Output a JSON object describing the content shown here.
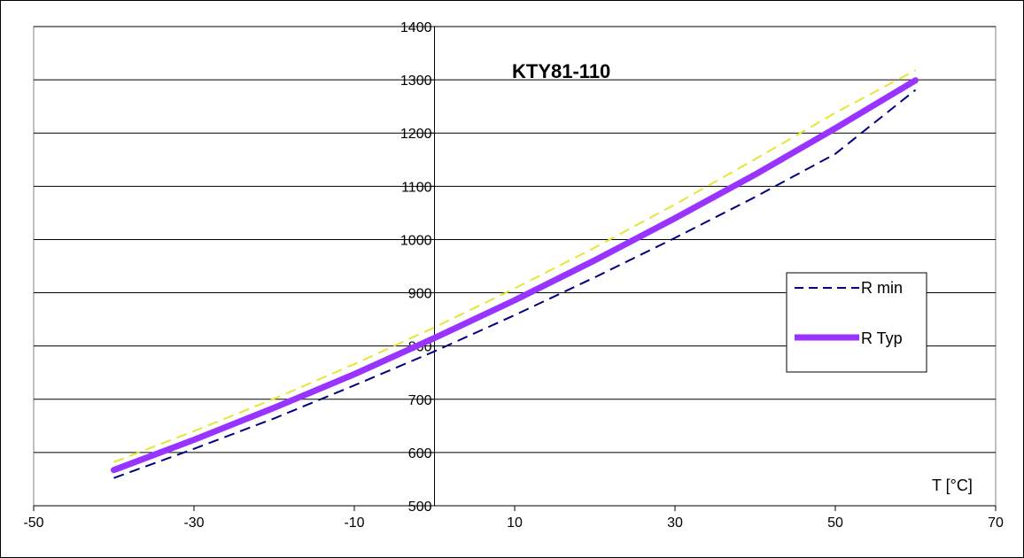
{
  "chart_data": {
    "type": "line",
    "title": "KTY81-110",
    "xlabel": "T [°C]",
    "ylabel": "",
    "xlim": [
      -50,
      70
    ],
    "ylim": [
      500,
      1400
    ],
    "x_ticks": [
      -50,
      -30,
      -10,
      10,
      30,
      50,
      70
    ],
    "y_ticks": [
      500,
      600,
      700,
      800,
      900,
      1000,
      1100,
      1200,
      1300,
      1400
    ],
    "grid": "horizontal",
    "legend_position": "right",
    "series": [
      {
        "name": "R min",
        "color": "#000080",
        "style": "dashed",
        "x": [
          -40,
          -30,
          -20,
          -10,
          0,
          10,
          20,
          30,
          40,
          50,
          60
        ],
        "y": [
          552,
          607,
          664,
          726,
          790,
          858,
          929,
          1003,
          1080,
          1161,
          1281
        ]
      },
      {
        "name": "R Typ",
        "color": "#9933ff",
        "style": "solid-thick",
        "x": [
          -40,
          -30,
          -20,
          -10,
          0,
          10,
          20,
          30,
          40,
          50,
          60
        ],
        "y": [
          567,
          624,
          684,
          747,
          815,
          886,
          961,
          1040,
          1122,
          1209,
          1299
        ]
      },
      {
        "name": "",
        "color": "#e6e633",
        "style": "dashed",
        "x": [
          -40,
          -30,
          -20,
          -10,
          0,
          10,
          20,
          30,
          40,
          50,
          60
        ],
        "y": [
          582,
          640,
          701,
          766,
          835,
          908,
          985,
          1066,
          1151,
          1238,
          1318
        ]
      }
    ]
  }
}
